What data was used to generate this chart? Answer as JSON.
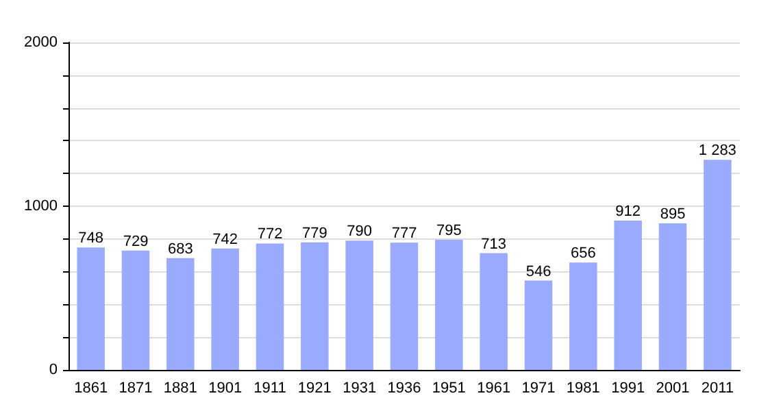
{
  "chart_data": {
    "type": "bar",
    "categories": [
      "1861",
      "1871",
      "1881",
      "1901",
      "1911",
      "1921",
      "1931",
      "1936",
      "1951",
      "1961",
      "1971",
      "1981",
      "1991",
      "2001",
      "2011"
    ],
    "values": [
      748,
      729,
      683,
      742,
      772,
      779,
      790,
      777,
      795,
      713,
      546,
      656,
      912,
      895,
      1283
    ],
    "value_labels": [
      "748",
      "729",
      "683",
      "742",
      "772",
      "779",
      "790",
      "777",
      "795",
      "713",
      "546",
      "656",
      "912",
      "895",
      "1 283"
    ],
    "color": "#99aaff",
    "ylim": [
      0,
      2000
    ],
    "yticks": [
      0,
      {
        "value": 200,
        "label": null
      },
      {
        "value": 400,
        "label": null
      },
      {
        "value": 600,
        "label": null
      },
      {
        "value": 800,
        "label": null
      },
      1000,
      {
        "value": 1200,
        "label": null
      },
      {
        "value": 1400,
        "label": null
      },
      {
        "value": 1600,
        "label": null
      },
      {
        "value": 1800,
        "label": null
      },
      2000
    ],
    "grid": "y"
  }
}
